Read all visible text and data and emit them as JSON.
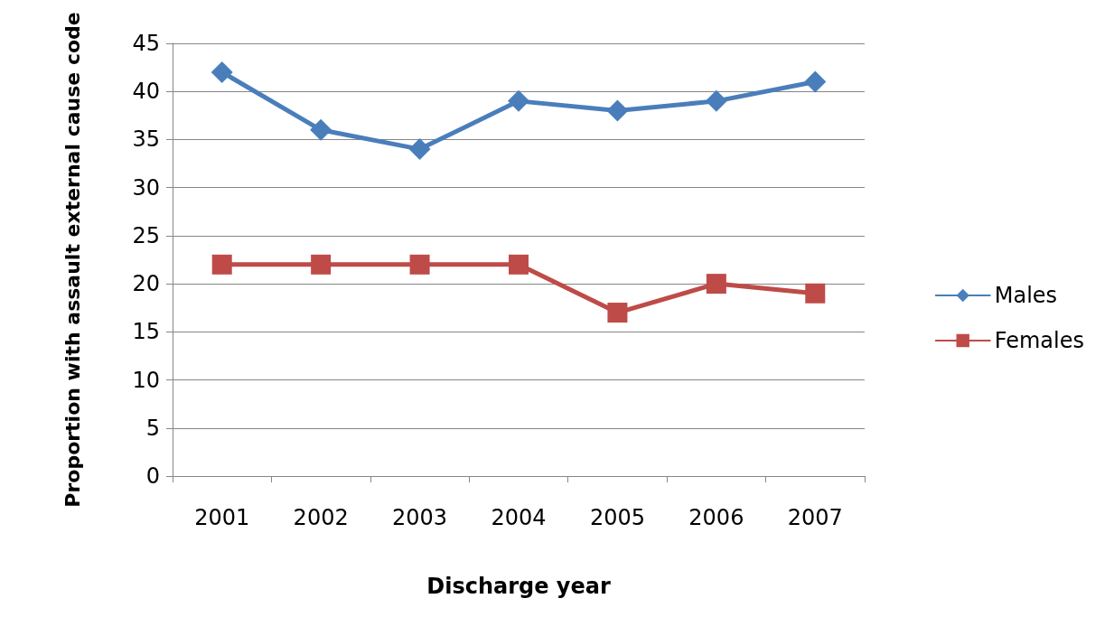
{
  "chart_data": {
    "type": "line",
    "xlabel": "Discharge year",
    "ylabel": "Proportion with assault external cause code",
    "categories": [
      "2001",
      "2002",
      "2003",
      "2004",
      "2005",
      "2006",
      "2007"
    ],
    "series": [
      {
        "name": "Males",
        "color": "#4a7ebb",
        "marker": "diamond",
        "values": [
          42,
          36,
          34,
          39,
          38,
          39,
          41
        ]
      },
      {
        "name": "Females",
        "color": "#be4b48",
        "marker": "square",
        "values": [
          22,
          22,
          22,
          22,
          17,
          20,
          19
        ]
      }
    ],
    "ylim": [
      0,
      45
    ],
    "yticks": [
      0,
      5,
      10,
      15,
      20,
      25,
      30,
      35,
      40,
      45
    ],
    "grid": "y",
    "legend": "right",
    "line_style": "solid"
  }
}
